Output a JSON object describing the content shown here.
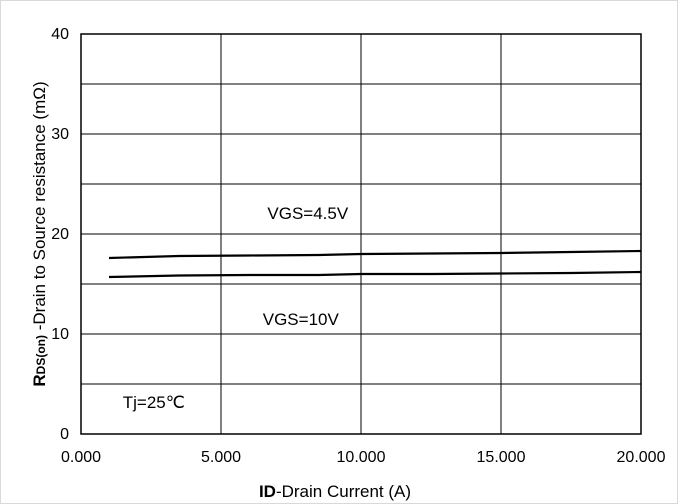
{
  "chart_data": {
    "type": "line",
    "title": "",
    "xlabel_bold": "ID",
    "xlabel_rest": "-Drain Current (A)",
    "ylabel_bold_main": "R",
    "ylabel_bold_sub": "DS(on)",
    "ylabel_rest": " -Drain to Source resistance (mΩ)",
    "xlim": [
      0,
      20
    ],
    "ylim": [
      0,
      40
    ],
    "x_ticks": [
      0,
      5,
      10,
      15,
      20
    ],
    "x_tick_labels": [
      "0.000",
      "5.000",
      "10.000",
      "15.000",
      "20.000"
    ],
    "y_ticks": [
      0,
      10,
      20,
      30,
      40
    ],
    "y_tick_labels": [
      "0",
      "10",
      "20",
      "30",
      "40"
    ],
    "y_minor_gridlines": [
      5,
      15,
      25,
      35
    ],
    "grid": true,
    "series": [
      {
        "name": "VGS=4.5V",
        "x": [
          1,
          3.5,
          6,
          8.5,
          10,
          12.5,
          15,
          17.5,
          20
        ],
        "y": [
          17.6,
          17.8,
          17.85,
          17.9,
          18.0,
          18.05,
          18.1,
          18.2,
          18.3
        ]
      },
      {
        "name": "VGS=10V",
        "x": [
          1,
          3.5,
          6,
          8.5,
          10,
          12.5,
          15,
          17.5,
          20
        ],
        "y": [
          15.7,
          15.85,
          15.9,
          15.9,
          16.0,
          16.0,
          16.05,
          16.1,
          16.2
        ]
      }
    ],
    "annotations": [
      {
        "text": "VGS=4.5V",
        "x": 8.1,
        "y": 21.5
      },
      {
        "text": "VGS=10V",
        "x": 7.85,
        "y": 10.9
      },
      {
        "text": "Tj=25℃",
        "x": 2.6,
        "y": 2.6
      }
    ]
  }
}
